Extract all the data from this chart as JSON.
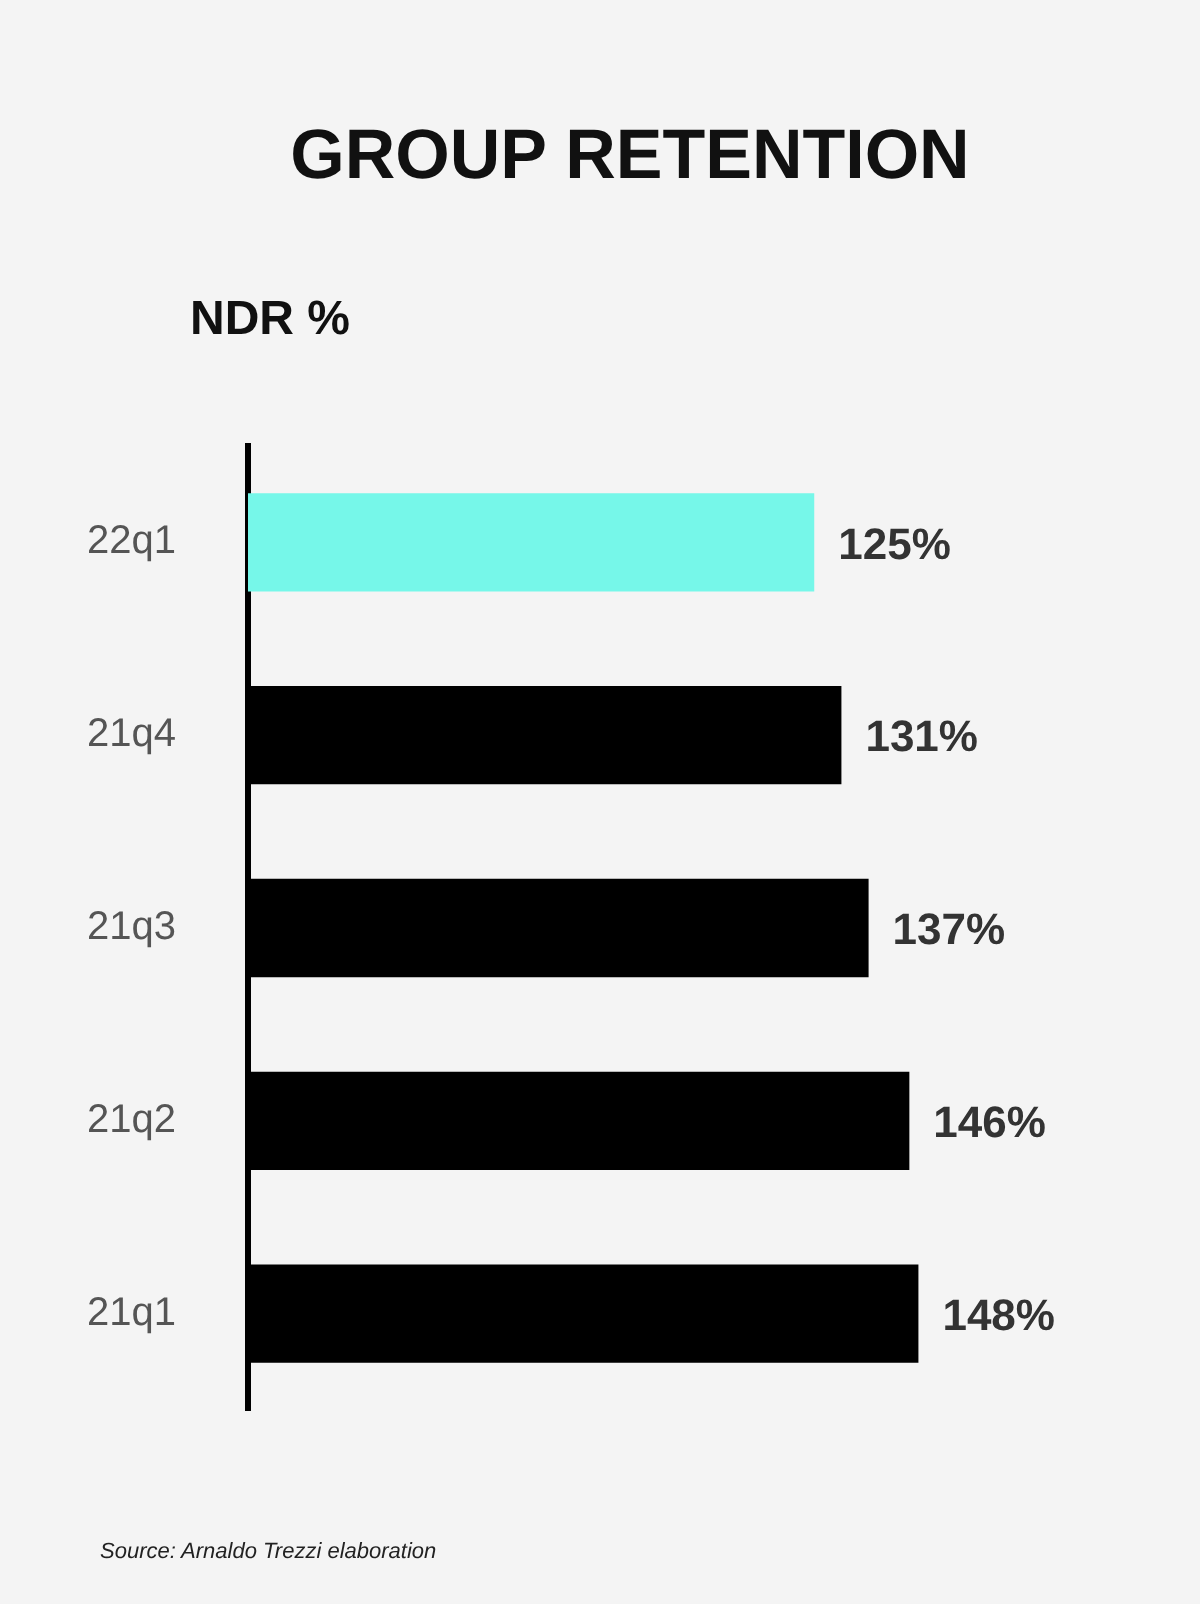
{
  "chart_data": {
    "type": "bar",
    "orientation": "horizontal",
    "title": "GROUP RETENTION",
    "ylabel": "NDR %",
    "categories": [
      "22q1",
      "21q4",
      "21q3",
      "21q2",
      "21q1"
    ],
    "values": [
      125,
      131,
      137,
      146,
      148
    ],
    "colors": [
      "#76f7e9",
      "#000000",
      "#000000",
      "#000000",
      "#000000"
    ],
    "value_labels": [
      "125%",
      "131%",
      "137%",
      "146%",
      "148%"
    ],
    "legend": false,
    "annotations": [
      "Source: Arnaldo Trezzi elaboration"
    ]
  }
}
